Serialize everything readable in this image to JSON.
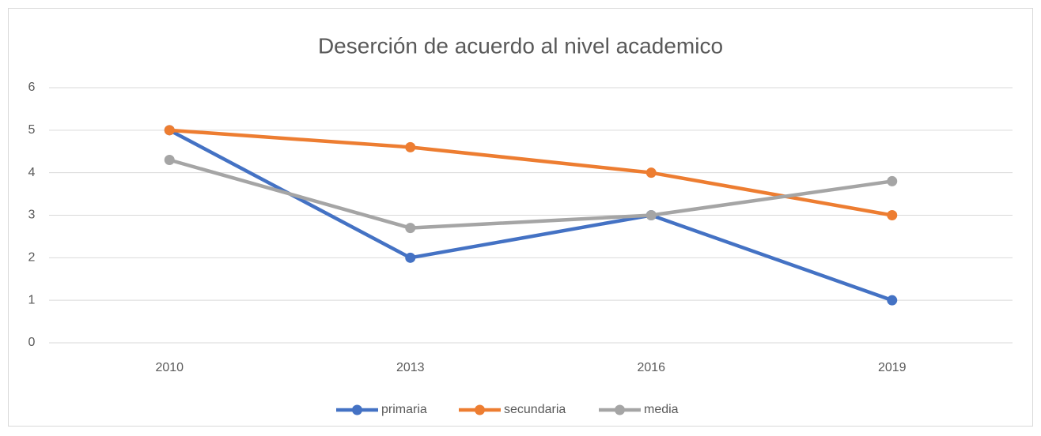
{
  "chart_data": {
    "type": "line",
    "title": "Deserción de acuerdo al nivel academico",
    "categories": [
      "2010",
      "2013",
      "2016",
      "2019"
    ],
    "series": [
      {
        "name": "primaria",
        "color": "#4472c4",
        "values": [
          5,
          2,
          3,
          1
        ]
      },
      {
        "name": "secundaria",
        "color": "#ed7d31",
        "values": [
          5,
          4.6,
          4,
          3
        ]
      },
      {
        "name": "media",
        "color": "#a5a5a5",
        "values": [
          4.3,
          2.7,
          3,
          3.8
        ]
      }
    ],
    "ylim": [
      0,
      6
    ],
    "yticks": [
      0,
      1,
      2,
      3,
      4,
      5,
      6
    ],
    "grid": true,
    "legend": "bottom"
  }
}
